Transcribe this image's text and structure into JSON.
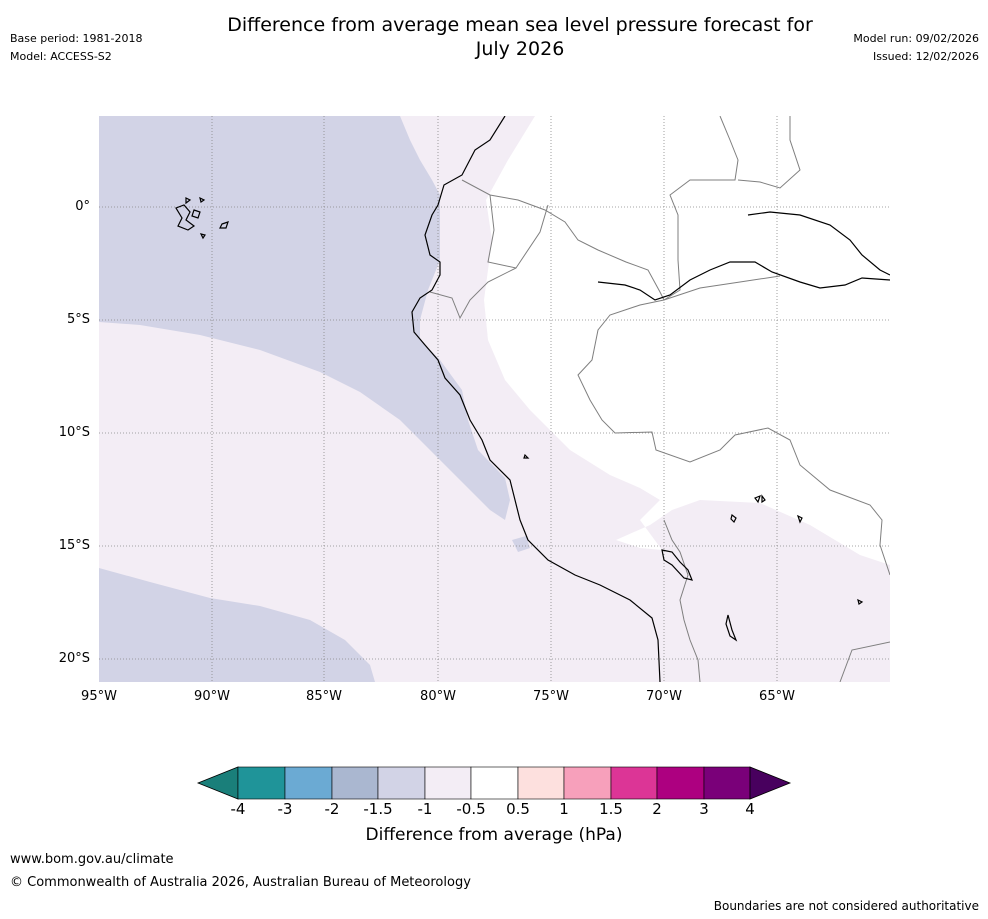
{
  "header": {
    "title_line1": "Difference from average mean sea level pressure forecast for",
    "title_line2": "July 2026",
    "base_period": "Base period: 1981-2018",
    "model": "Model: ACCESS-S2",
    "model_run": "Model run: 09/02/2026",
    "issued": "Issued: 12/02/2026"
  },
  "map": {
    "lat_labels": [
      "0°",
      "5°S",
      "10°S",
      "15°S",
      "20°S"
    ],
    "lon_labels": [
      "95°W",
      "90°W",
      "85°W",
      "80°W",
      "75°W",
      "70°W",
      "65°W"
    ]
  },
  "colorbar": {
    "ticks": [
      "-4",
      "-3",
      "-2",
      "-1.5",
      "-1",
      "-0.5",
      "0.5",
      "1",
      "1.5",
      "2",
      "3",
      "4"
    ],
    "colors": [
      "#1a7f7a",
      "#1f9499",
      "#6baad3",
      "#aab7d0",
      "#d2d3e6",
      "#f3edf5",
      "#ffffff",
      "#fde0de",
      "#f7a0bb",
      "#dc3596",
      "#ad0080",
      "#7a0079",
      "#48005e"
    ],
    "label": "Difference from average (hPa)"
  },
  "footer": {
    "url": "www.bom.gov.au/climate",
    "copyright": "© Commonwealth of Australia 2026, Australian Bureau of Meteorology",
    "disclaimer": "Boundaries are not considered authoritative"
  }
}
